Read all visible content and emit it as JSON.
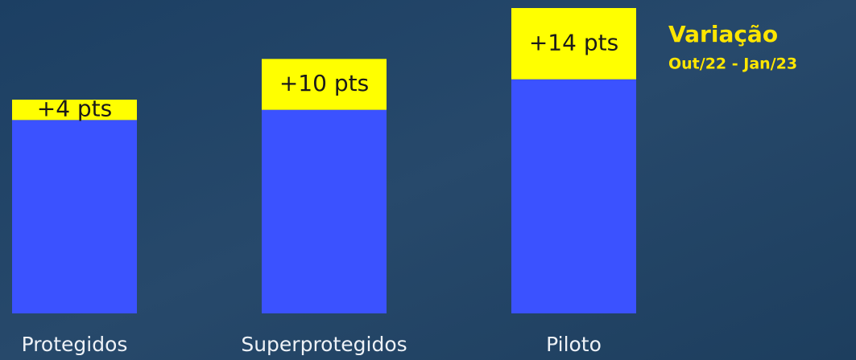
{
  "chart_data": {
    "type": "stacked-bar",
    "title": "Variação",
    "subtitle": "Out/22 - Jan/23",
    "categories": [
      "Protegidos",
      "Superprotegidos",
      "Piloto"
    ],
    "series": [
      {
        "color": "#3b52ff",
        "values": [
          38,
          40,
          46
        ]
      },
      {
        "color": "#ffff00",
        "values": [
          4,
          10,
          14
        ],
        "value_labels": [
          "+4 pts",
          "+10 pts",
          "+14 pts"
        ]
      }
    ],
    "ylim": [
      0,
      60
    ]
  }
}
